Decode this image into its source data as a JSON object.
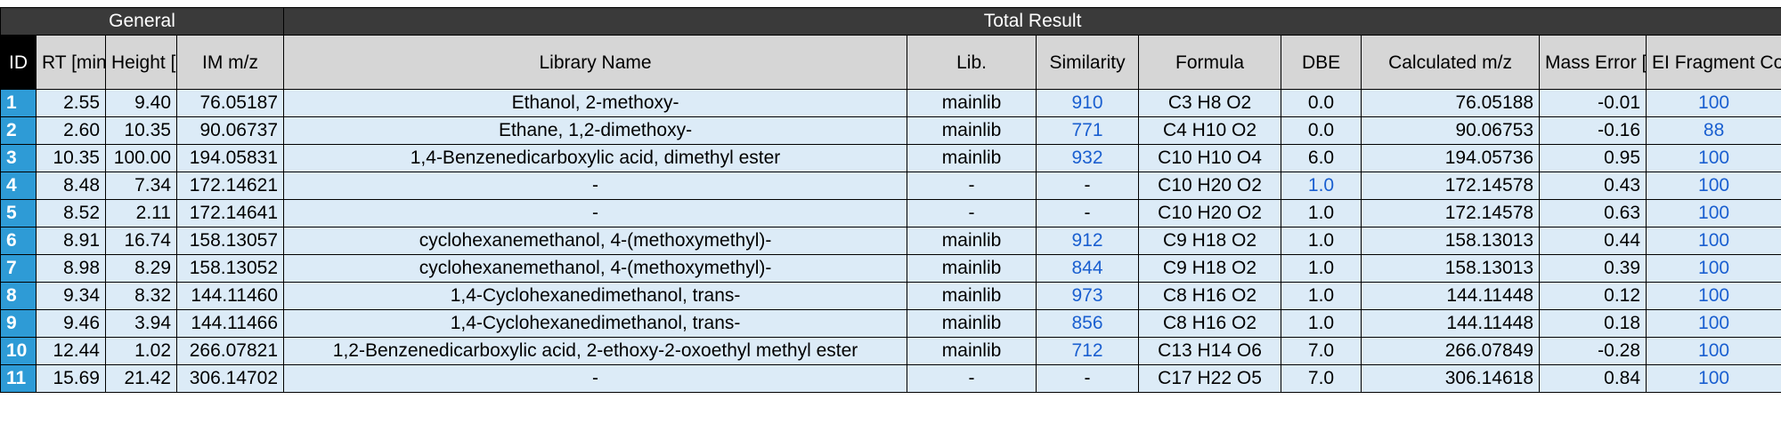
{
  "groups": {
    "general": "General",
    "total_result": "Total Result"
  },
  "headers": {
    "id": "ID",
    "rt": "RT [min]",
    "height": "Height [%]",
    "im_mz": "IM m/z",
    "library_name": "Library Name",
    "lib": "Lib.",
    "similarity": "Similarity",
    "formula": "Formula",
    "dbe": "DBE",
    "calc_mz": "Calculated m/z",
    "mass_error": "Mass Error [mDa]",
    "ei_coverage": "EI Fragment Coverage"
  },
  "rows": [
    {
      "id": "1",
      "rt": "2.55",
      "height": "9.40",
      "im_mz": "76.05187",
      "name": "Ethanol, 2-methoxy-",
      "lib": "mainlib",
      "similarity": "910",
      "formula": "C3 H8 O2",
      "dbe": "0.0",
      "calc_mz": "76.05188",
      "mass_error": "-0.01",
      "coverage": "100"
    },
    {
      "id": "2",
      "rt": "2.60",
      "height": "10.35",
      "im_mz": "90.06737",
      "name": "Ethane, 1,2-dimethoxy-",
      "lib": "mainlib",
      "similarity": "771",
      "formula": "C4 H10 O2",
      "dbe": "0.0",
      "calc_mz": "90.06753",
      "mass_error": "-0.16",
      "coverage": "88"
    },
    {
      "id": "3",
      "rt": "10.35",
      "height": "100.00",
      "im_mz": "194.05831",
      "name": "1,4-Benzenedicarboxylic acid, dimethyl ester",
      "lib": "mainlib",
      "similarity": "932",
      "formula": "C10 H10 O4",
      "dbe": "6.0",
      "calc_mz": "194.05736",
      "mass_error": "0.95",
      "coverage": "100"
    },
    {
      "id": "4",
      "rt": "8.48",
      "height": "7.34",
      "im_mz": "172.14621",
      "name": "-",
      "lib": "-",
      "similarity": "-",
      "formula": "C10 H20 O2",
      "dbe": "1.0",
      "calc_mz": "172.14578",
      "mass_error": "0.43",
      "coverage": "100"
    },
    {
      "id": "5",
      "rt": "8.52",
      "height": "2.11",
      "im_mz": "172.14641",
      "name": "-",
      "lib": "-",
      "similarity": "-",
      "formula": "C10 H20 O2",
      "dbe": "1.0",
      "calc_mz": "172.14578",
      "mass_error": "0.63",
      "coverage": "100"
    },
    {
      "id": "6",
      "rt": "8.91",
      "height": "16.74",
      "im_mz": "158.13057",
      "name": "cyclohexanemethanol, 4-(methoxymethyl)-",
      "lib": "mainlib",
      "similarity": "912",
      "formula": "C9 H18 O2",
      "dbe": "1.0",
      "calc_mz": "158.13013",
      "mass_error": "0.44",
      "coverage": "100"
    },
    {
      "id": "7",
      "rt": "8.98",
      "height": "8.29",
      "im_mz": "158.13052",
      "name": "cyclohexanemethanol, 4-(methoxymethyl)-",
      "lib": "mainlib",
      "similarity": "844",
      "formula": "C9 H18 O2",
      "dbe": "1.0",
      "calc_mz": "158.13013",
      "mass_error": "0.39",
      "coverage": "100"
    },
    {
      "id": "8",
      "rt": "9.34",
      "height": "8.32",
      "im_mz": "144.11460",
      "name": "1,4-Cyclohexanedimethanol, trans-",
      "lib": "mainlib",
      "similarity": "973",
      "formula": "C8 H16 O2",
      "dbe": "1.0",
      "calc_mz": "144.11448",
      "mass_error": "0.12",
      "coverage": "100"
    },
    {
      "id": "9",
      "rt": "9.46",
      "height": "3.94",
      "im_mz": "144.11466",
      "name": "1,4-Cyclohexanedimethanol, trans-",
      "lib": "mainlib",
      "similarity": "856",
      "formula": "C8 H16 O2",
      "dbe": "1.0",
      "calc_mz": "144.11448",
      "mass_error": "0.18",
      "coverage": "100"
    },
    {
      "id": "10",
      "rt": "12.44",
      "height": "1.02",
      "im_mz": "266.07821",
      "name": "1,2-Benzenedicarboxylic acid, 2-ethoxy-2-oxoethyl methyl ester",
      "lib": "mainlib",
      "similarity": "712",
      "formula": "C13 H14 O6",
      "dbe": "7.0",
      "calc_mz": "266.07849",
      "mass_error": "-0.28",
      "coverage": "100"
    },
    {
      "id": "11",
      "rt": "15.69",
      "height": "21.42",
      "im_mz": "306.14702",
      "name": "-",
      "lib": "-",
      "similarity": "-",
      "formula": "C17 H22 O5",
      "dbe": "7.0",
      "calc_mz": "306.14618",
      "mass_error": "0.84",
      "coverage": "100"
    }
  ],
  "link_color": "#1a5fd0",
  "id_cell_color": "#2e9bd6",
  "row_color": "#dcebf7"
}
